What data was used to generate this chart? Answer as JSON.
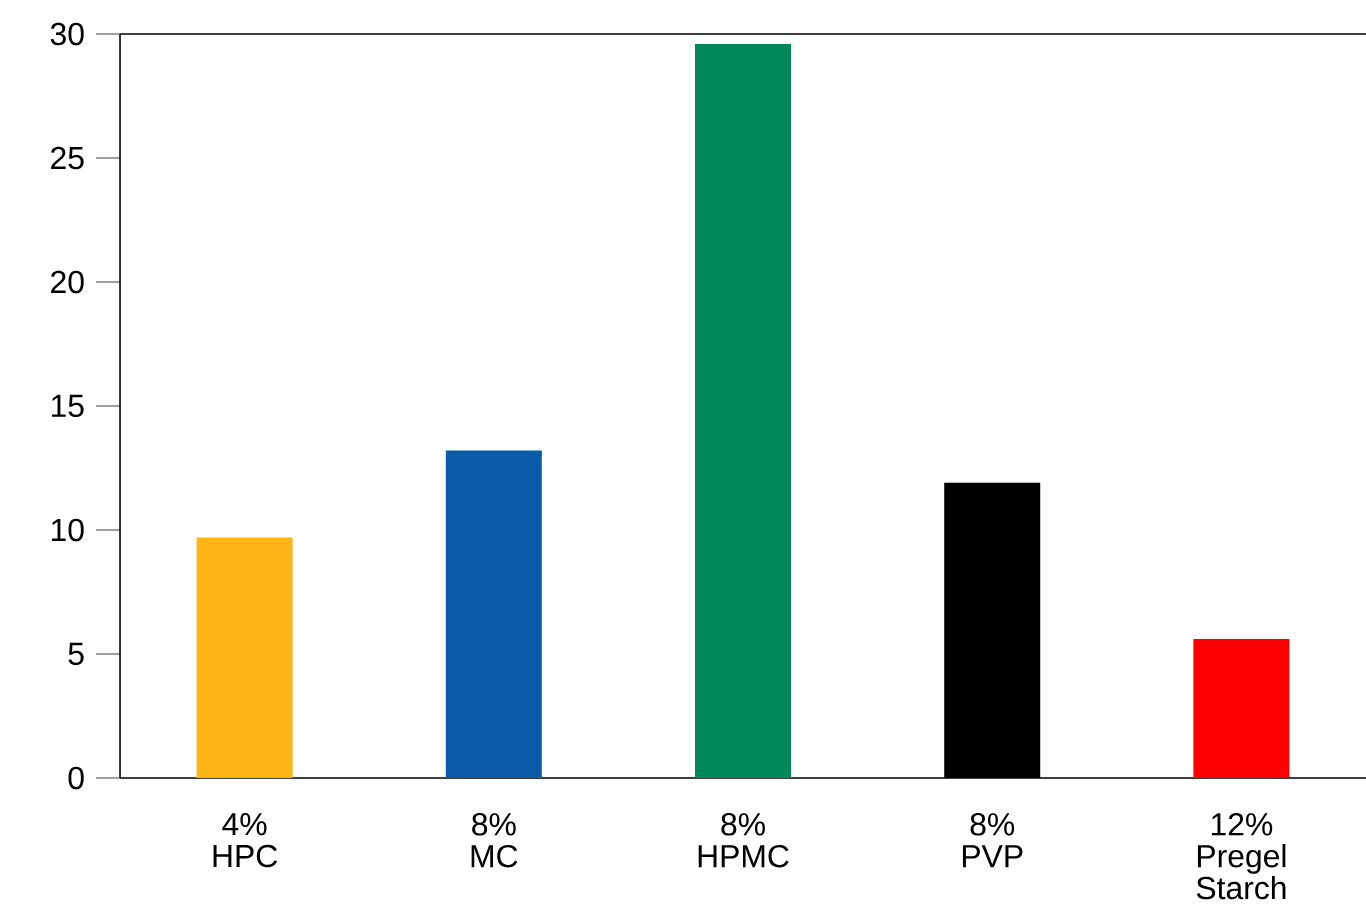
{
  "chart_data": {
    "type": "bar",
    "categories": [
      "4% HPC",
      "8% MC",
      "8% HPMC",
      "8% PVP",
      "12% Pregel Starch"
    ],
    "values": [
      9.7,
      13.2,
      29.6,
      11.9,
      5.6
    ],
    "colors": [
      "#fdb515",
      "#0a5ca8",
      "#00875a",
      "#000000",
      "#ff0000"
    ],
    "ylim": [
      0,
      30
    ],
    "yticks": [
      0,
      5,
      10,
      15,
      20,
      25,
      30
    ]
  }
}
